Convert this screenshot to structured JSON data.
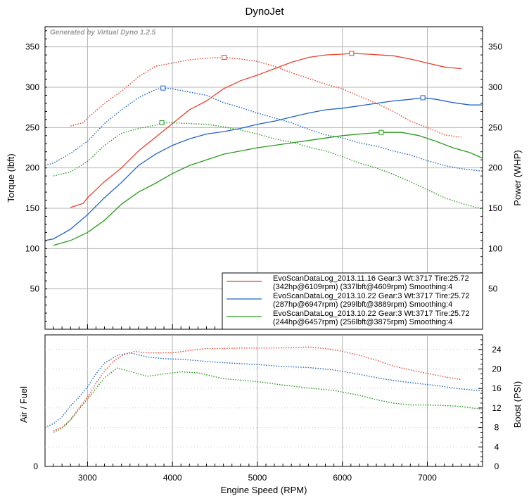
{
  "chart_data": [
    {
      "type": "line",
      "title": "DynoJet",
      "note": "Generated by Virtual Dyno 1.2.5",
      "xlabel": "",
      "ylabel": "Torque (lbft)",
      "y2label": "Power (WHP)",
      "xlim": [
        2500,
        7650
      ],
      "ylim": [
        0,
        375
      ],
      "y2lim": [
        0,
        375
      ],
      "yticks": [
        50,
        100,
        150,
        200,
        250,
        300,
        350
      ],
      "y2ticks": [
        50,
        100,
        150,
        200,
        250,
        300,
        350
      ],
      "grid": true,
      "legend_position": "bottom-right",
      "legend": [
        {
          "line1": "EvoScanDataLog_2013.11.16 Gear:3 Wt:3717 Tire:25.72",
          "line2": "(342hp@6109rpm) (337lbft@4609rpm) Smoothing:4",
          "color": "#e8412a"
        },
        {
          "line1": "EvoScanDataLog_2013.10.22 Gear:3 Wt:3717 Tire:25.72",
          "line2": "(287hp@6947rpm) (299lbft@3889rpm) Smoothing:4",
          "color": "#1f63c6"
        },
        {
          "line1": "EvoScanDataLog_2013.10.22 Gear:3 Wt:3717 Tire:25.72",
          "line2": "(244hp@6457rpm) (256lbft@3875rpm) Smoothing:4",
          "color": "#2a9a1e"
        }
      ],
      "series": [
        {
          "kind": "power",
          "color": "#e8412a",
          "style": "solid",
          "x": [
            2800,
            2950,
            3000,
            3200,
            3400,
            3600,
            3800,
            4000,
            4200,
            4400,
            4600,
            4800,
            5000,
            5200,
            5400,
            5600,
            5800,
            6000,
            6109,
            6300,
            6600,
            6800,
            7000,
            7200,
            7400
          ],
          "y": [
            151,
            156,
            163,
            183,
            200,
            221,
            238,
            255,
            272,
            283,
            298,
            308,
            315,
            323,
            331,
            337,
            340,
            341,
            342,
            341,
            339,
            335,
            330,
            325,
            323
          ],
          "peak": [
            6109,
            342
          ]
        },
        {
          "kind": "torque",
          "color": "#e8412a",
          "style": "dotted",
          "x": [
            2800,
            2950,
            3000,
            3200,
            3400,
            3600,
            3800,
            4000,
            4200,
            4400,
            4609,
            4800,
            5000,
            5200,
            5400,
            5600,
            5800,
            6000,
            6200,
            6400,
            6600,
            6800,
            7000,
            7200,
            7400
          ],
          "y": [
            252,
            256,
            262,
            280,
            295,
            313,
            326,
            330,
            334,
            336,
            337,
            335,
            332,
            326,
            318,
            311,
            304,
            298,
            289,
            280,
            270,
            258,
            250,
            241,
            238
          ],
          "peak": [
            4609,
            337
          ]
        },
        {
          "kind": "power",
          "color": "#1f63c6",
          "style": "solid",
          "x": [
            2500,
            2600,
            2800,
            3000,
            3200,
            3400,
            3600,
            3800,
            4000,
            4200,
            4400,
            4600,
            4800,
            5000,
            5200,
            5400,
            5600,
            5800,
            6000,
            6200,
            6400,
            6600,
            6800,
            6947,
            7100,
            7300,
            7500,
            7650
          ],
          "y": [
            110,
            112,
            124,
            142,
            163,
            182,
            203,
            217,
            228,
            236,
            242,
            245,
            249,
            254,
            258,
            263,
            268,
            272,
            274,
            277,
            280,
            283,
            285,
            287,
            285,
            281,
            278,
            278
          ],
          "peak": [
            6947,
            287
          ]
        },
        {
          "kind": "torque",
          "color": "#1f63c6",
          "style": "dotted",
          "x": [
            2500,
            2600,
            2800,
            3000,
            3200,
            3400,
            3600,
            3800,
            3889,
            4000,
            4200,
            4400,
            4600,
            4800,
            5000,
            5200,
            5400,
            5600,
            5800,
            6000,
            6200,
            6400,
            6600,
            6800,
            7000,
            7200,
            7400,
            7650
          ],
          "y": [
            203,
            206,
            218,
            233,
            255,
            272,
            287,
            297,
            299,
            298,
            294,
            290,
            281,
            275,
            268,
            262,
            256,
            248,
            241,
            237,
            231,
            227,
            221,
            216,
            209,
            203,
            199,
            196
          ],
          "peak": [
            3889,
            299
          ]
        },
        {
          "kind": "power",
          "color": "#2a9a1e",
          "style": "solid",
          "x": [
            2600,
            2800,
            3000,
            3200,
            3400,
            3600,
            3800,
            4000,
            4200,
            4400,
            4600,
            4800,
            5000,
            5200,
            5400,
            5600,
            5800,
            6000,
            6200,
            6457,
            6700,
            6900,
            7100,
            7300,
            7500,
            7650
          ],
          "y": [
            104,
            110,
            120,
            135,
            155,
            170,
            181,
            193,
            203,
            210,
            217,
            221,
            225,
            228,
            231,
            234,
            237,
            240,
            242,
            244,
            244,
            240,
            233,
            225,
            219,
            212
          ],
          "peak": [
            6457,
            244
          ]
        },
        {
          "kind": "torque",
          "color": "#2a9a1e",
          "style": "dotted",
          "x": [
            2600,
            2800,
            3000,
            3200,
            3400,
            3600,
            3800,
            3875,
            4000,
            4200,
            4400,
            4600,
            4800,
            5000,
            5200,
            5400,
            5600,
            5800,
            6000,
            6200,
            6400,
            6600,
            6800,
            7000,
            7200,
            7400,
            7650
          ],
          "y": [
            190,
            195,
            208,
            228,
            243,
            249,
            253,
            256,
            256,
            255,
            254,
            251,
            247,
            242,
            236,
            232,
            226,
            221,
            214,
            206,
            200,
            192,
            183,
            173,
            163,
            156,
            149
          ],
          "peak": [
            3875,
            256
          ]
        }
      ]
    },
    {
      "type": "line",
      "title": "",
      "xlabel": "Engine Speed (RPM)",
      "ylabel": "Air / Fuel",
      "y2label": "Boost (PSI)",
      "xlim": [
        2500,
        7650
      ],
      "xticks": [
        3000,
        4000,
        5000,
        6000,
        7000
      ],
      "y2lim": [
        0,
        27
      ],
      "y2ticks": [
        0,
        4,
        8,
        12,
        16,
        20,
        24
      ],
      "yticks": [
        0
      ],
      "grid": true,
      "series": [
        {
          "color": "#e8412a",
          "style": "dotted",
          "x": [
            2600,
            2700,
            2800,
            2900,
            3000,
            3100,
            3200,
            3300,
            3400,
            3550,
            3700,
            4000,
            4200,
            4400,
            4600,
            4800,
            5000,
            5200,
            5400,
            5600,
            5800,
            6000,
            6200,
            6400,
            6600,
            6800,
            7000,
            7200,
            7400
          ],
          "y": [
            7.3,
            8.0,
            9.6,
            12.0,
            14.2,
            17.1,
            19.5,
            21.5,
            22.7,
            23.6,
            23.3,
            23.3,
            23.8,
            24.2,
            24.2,
            24.3,
            24.3,
            24.3,
            24.4,
            24.5,
            24.2,
            23.6,
            22.8,
            21.8,
            20.6,
            19.8,
            19.1,
            18.4,
            17.8
          ]
        },
        {
          "color": "#1f63c6",
          "style": "dotted",
          "x": [
            2500,
            2600,
            2700,
            2800,
            2900,
            3000,
            3100,
            3200,
            3350,
            3500,
            3700,
            3900,
            4100,
            4300,
            4500,
            4700,
            5000,
            5300,
            5600,
            5900,
            6200,
            6500,
            6800,
            7100,
            7400,
            7650
          ],
          "y": [
            8.0,
            8.8,
            10.2,
            12.4,
            14.2,
            16.3,
            19.0,
            21.2,
            22.8,
            23.3,
            22.5,
            22.1,
            22.0,
            21.7,
            21.4,
            21.2,
            20.9,
            20.5,
            20.3,
            19.8,
            18.9,
            17.9,
            17.2,
            16.6,
            15.9,
            15.5
          ]
        },
        {
          "color": "#2a9a1e",
          "style": "dotted",
          "x": [
            2600,
            2700,
            2800,
            2900,
            3000,
            3100,
            3200,
            3350,
            3500,
            3700,
            3900,
            4100,
            4300,
            4600,
            5000,
            5300,
            5600,
            5900,
            6200,
            6400,
            6600,
            6800,
            7000,
            7200,
            7400,
            7650
          ],
          "y": [
            7.0,
            7.8,
            9.5,
            11.7,
            13.8,
            16.0,
            18.2,
            20.2,
            19.5,
            18.5,
            19.0,
            19.4,
            19.2,
            18.0,
            17.4,
            16.7,
            16.1,
            15.6,
            14.6,
            13.7,
            13.0,
            12.6,
            12.6,
            12.5,
            12.3,
            11.7
          ]
        }
      ]
    }
  ]
}
